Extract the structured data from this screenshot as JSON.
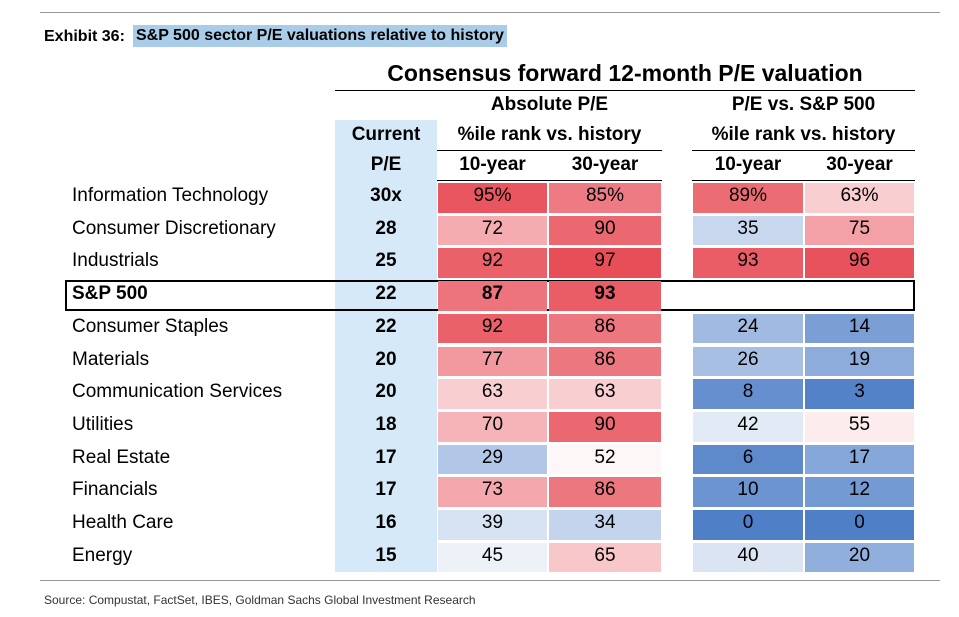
{
  "header": {
    "exhibit": "Exhibit 36:",
    "title": "S&P 500 sector P/E valuations relative to history"
  },
  "table": {
    "title": "Consensus forward 12-month P/E valuation",
    "current_header": [
      "Current",
      "P/E"
    ],
    "groups": [
      {
        "title": "Absolute P/E",
        "subtitle": "%ile rank vs. history",
        "columns": [
          "10-year",
          "30-year"
        ]
      },
      {
        "title": "P/E vs. S&P 500",
        "subtitle": "%ile rank vs. history",
        "columns": [
          "10-year",
          "30-year"
        ]
      }
    ],
    "rows": [
      {
        "label": "Information Technology",
        "pe": "30x",
        "values": [
          "95%",
          "85%",
          "89%",
          "63%"
        ]
      },
      {
        "label": "Consumer Discretionary",
        "pe": "28",
        "values": [
          "72",
          "90",
          "35",
          "75"
        ]
      },
      {
        "label": "Industrials",
        "pe": "25",
        "values": [
          "92",
          "97",
          "93",
          "96"
        ]
      },
      {
        "label": "S&P 500",
        "pe": "22",
        "values": [
          "87",
          "93"
        ],
        "highlight": true
      },
      {
        "label": "Consumer Staples",
        "pe": "22",
        "values": [
          "92",
          "86",
          "24",
          "14"
        ]
      },
      {
        "label": "Materials",
        "pe": "20",
        "values": [
          "77",
          "86",
          "26",
          "19"
        ]
      },
      {
        "label": "Communication Services",
        "pe": "20",
        "values": [
          "63",
          "63",
          "8",
          "3"
        ]
      },
      {
        "label": "Utilities",
        "pe": "18",
        "values": [
          "70",
          "90",
          "42",
          "55"
        ]
      },
      {
        "label": "Real Estate",
        "pe": "17",
        "values": [
          "29",
          "52",
          "6",
          "17"
        ]
      },
      {
        "label": "Financials",
        "pe": "17",
        "values": [
          "73",
          "86",
          "10",
          "12"
        ]
      },
      {
        "label": "Health Care",
        "pe": "16",
        "values": [
          "39",
          "34",
          "0",
          "0"
        ]
      },
      {
        "label": "Energy",
        "pe": "15",
        "values": [
          "45",
          "65",
          "40",
          "20"
        ]
      }
    ]
  },
  "footer": {
    "source": "Source: Compustat, FactSet, IBES, Goldman Sachs Global Investment Research"
  }
}
